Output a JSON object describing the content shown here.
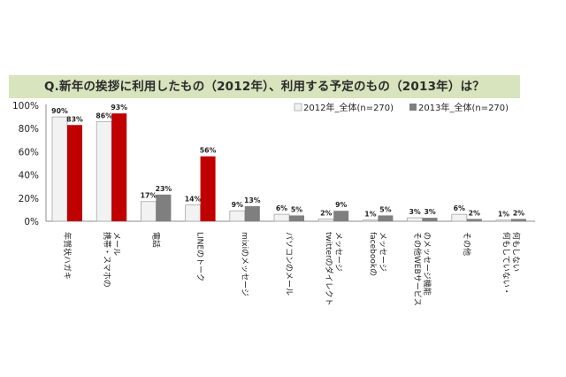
{
  "chart_data": {
    "type": "bar",
    "title": "Q.新年の挨拶に利用したもの（2012年）、利用する予定のもの（2013年）は？",
    "categories": [
      "年賀状ハガキ",
      "携帯・スマホのメール",
      "電話",
      "LINEのトーク",
      "mixiのメッセージ",
      "パソコンのメール",
      "twitterのダイレクトメッセージ",
      "facebookのメッセージ",
      "その他WEBサービスのメッセージ機能",
      "その他",
      "何もしていない・何もしない"
    ],
    "category_lines": [
      [
        "年賀状ハガキ"
      ],
      [
        "携帯・スマホの",
        "メール"
      ],
      [
        "電話"
      ],
      [
        "LINEのトーク"
      ],
      [
        "mixiのメッセージ"
      ],
      [
        "パソコンのメール"
      ],
      [
        "twitterのダイレクト",
        "メッセージ"
      ],
      [
        "facebookの",
        "メッセージ"
      ],
      [
        "その他WEBサービス",
        "のメッセージ機能"
      ],
      [
        "その他"
      ],
      [
        "何もしていない・",
        "何もしない"
      ]
    ],
    "series": [
      {
        "name": "2012年_全体(n=270)",
        "color": "#f2f2f2",
        "values": [
          90,
          86,
          17,
          14,
          9,
          6,
          2,
          1,
          3,
          6,
          1
        ]
      },
      {
        "name": "2013年_全体(n=270)",
        "color_rest": "#7f7f7f",
        "color_highlight": "#c00000",
        "highlight_categories": [
          0,
          1,
          3
        ],
        "values": [
          83,
          93,
          23,
          56,
          13,
          5,
          9,
          5,
          3,
          2,
          2
        ]
      }
    ],
    "ylim": [
      0,
      100
    ],
    "yticks": [
      0,
      20,
      40,
      60,
      80,
      100
    ],
    "ytick_labels": [
      "0%",
      "20%",
      "40%",
      "60%",
      "80%",
      "100%"
    ],
    "value_suffix": "%",
    "legend_position": "top-right",
    "grid": false,
    "xlabel": "",
    "ylabel": ""
  }
}
